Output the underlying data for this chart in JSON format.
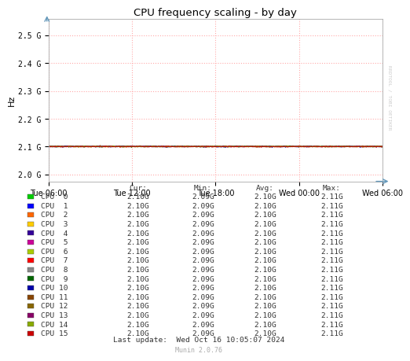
{
  "title": "CPU frequency scaling - by day",
  "ylabel": "Hz",
  "bg_color": "#ffffff",
  "plot_bg_color": "#ffffff",
  "grid_color": "#ffaaaa",
  "yticks": [
    2000000000.0,
    2100000000.0,
    2200000000.0,
    2300000000.0,
    2400000000.0,
    2500000000.0
  ],
  "ytick_labels": [
    "2.0 G",
    "2.1 G",
    "2.2 G",
    "2.3 G",
    "2.4 G",
    "2.5 G"
  ],
  "ylim": [
    1975000000.0,
    2560000000.0
  ],
  "xtick_labels": [
    "Tue 06:00",
    "Tue 12:00",
    "Tue 18:00",
    "Wed 00:00",
    "Wed 06:00"
  ],
  "line_value": 2100000000.0,
  "watermark": "RRDTOOL / TOBI OETIKER",
  "footer_update": "Last update:  Wed Oct 16 10:05:07 2024",
  "footer_munin": "Munin 2.0.76",
  "legend_header": [
    "Cur:",
    "Min:",
    "Avg:",
    "Max:"
  ],
  "cpus": [
    {
      "name": "CPU  0",
      "color": "#00cc00"
    },
    {
      "name": "CPU  1",
      "color": "#0000ff"
    },
    {
      "name": "CPU  2",
      "color": "#ff6600"
    },
    {
      "name": "CPU  3",
      "color": "#ffcc00"
    },
    {
      "name": "CPU  4",
      "color": "#330099"
    },
    {
      "name": "CPU  5",
      "color": "#cc0099"
    },
    {
      "name": "CPU  6",
      "color": "#aacc00"
    },
    {
      "name": "CPU  7",
      "color": "#ff0000"
    },
    {
      "name": "CPU  8",
      "color": "#888888"
    },
    {
      "name": "CPU  9",
      "color": "#006600"
    },
    {
      "name": "CPU 10",
      "color": "#0000aa"
    },
    {
      "name": "CPU 11",
      "color": "#884400"
    },
    {
      "name": "CPU 12",
      "color": "#886600"
    },
    {
      "name": "CPU 13",
      "color": "#880066"
    },
    {
      "name": "CPU 14",
      "color": "#88aa00"
    },
    {
      "name": "CPU 15",
      "color": "#cc0000"
    }
  ],
  "cur": "2.10G",
  "min": "2.09G",
  "avg": "2.10G",
  "max": "2.11G",
  "noise_amplitude": 2000000.0,
  "n_points": 500
}
